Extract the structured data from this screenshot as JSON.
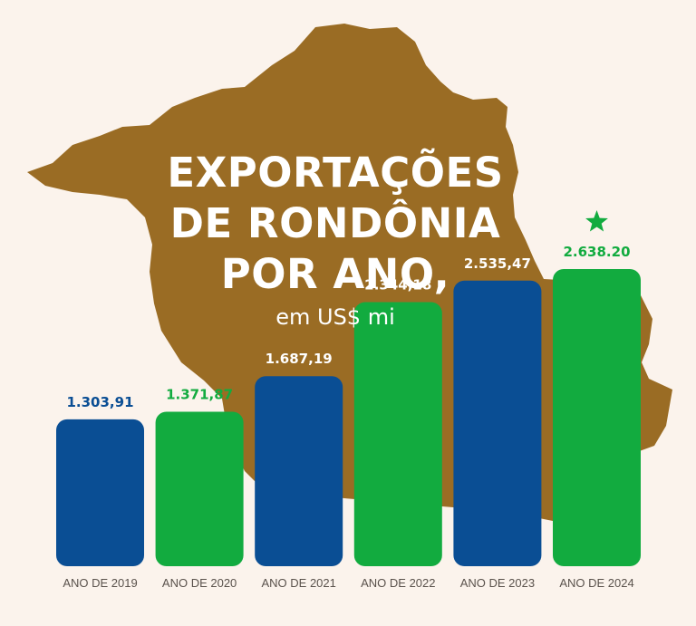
{
  "header": {
    "title_lines": [
      "EXPORTAÇÕES",
      "DE RONDÔNIA",
      "POR ANO,"
    ],
    "subtitle": "em US$ mi"
  },
  "colors": {
    "background": "#fbf3ec",
    "map": "#9a6c24",
    "blue": "#0a4e94",
    "green": "#12ab3f",
    "tick_text": "#5a524c",
    "star": "#12ab3f"
  },
  "icons": {
    "highlight": "star-icon",
    "map": "rondonia-map"
  },
  "chart_data": {
    "type": "bar",
    "title": "EXPORTAÇÕES DE RONDÔNIA POR ANO, em US$ mi",
    "categories": [
      "ANO DE 2019",
      "ANO DE 2020",
      "ANO DE 2021",
      "ANO DE 2022",
      "ANO DE 2023",
      "ANO DE 2024"
    ],
    "values": [
      1303.91,
      1371.87,
      1687.19,
      2344.18,
      2535.47,
      2638.2
    ],
    "data_labels": [
      "1.303,91",
      "1.371,87",
      "1.687,19",
      "2.344,18",
      "2.535,47",
      "2.638.20"
    ],
    "bar_colors": [
      "blue",
      "green",
      "blue",
      "green",
      "blue",
      "green"
    ],
    "highlight_index": 5,
    "grid": false,
    "legend": "none"
  }
}
